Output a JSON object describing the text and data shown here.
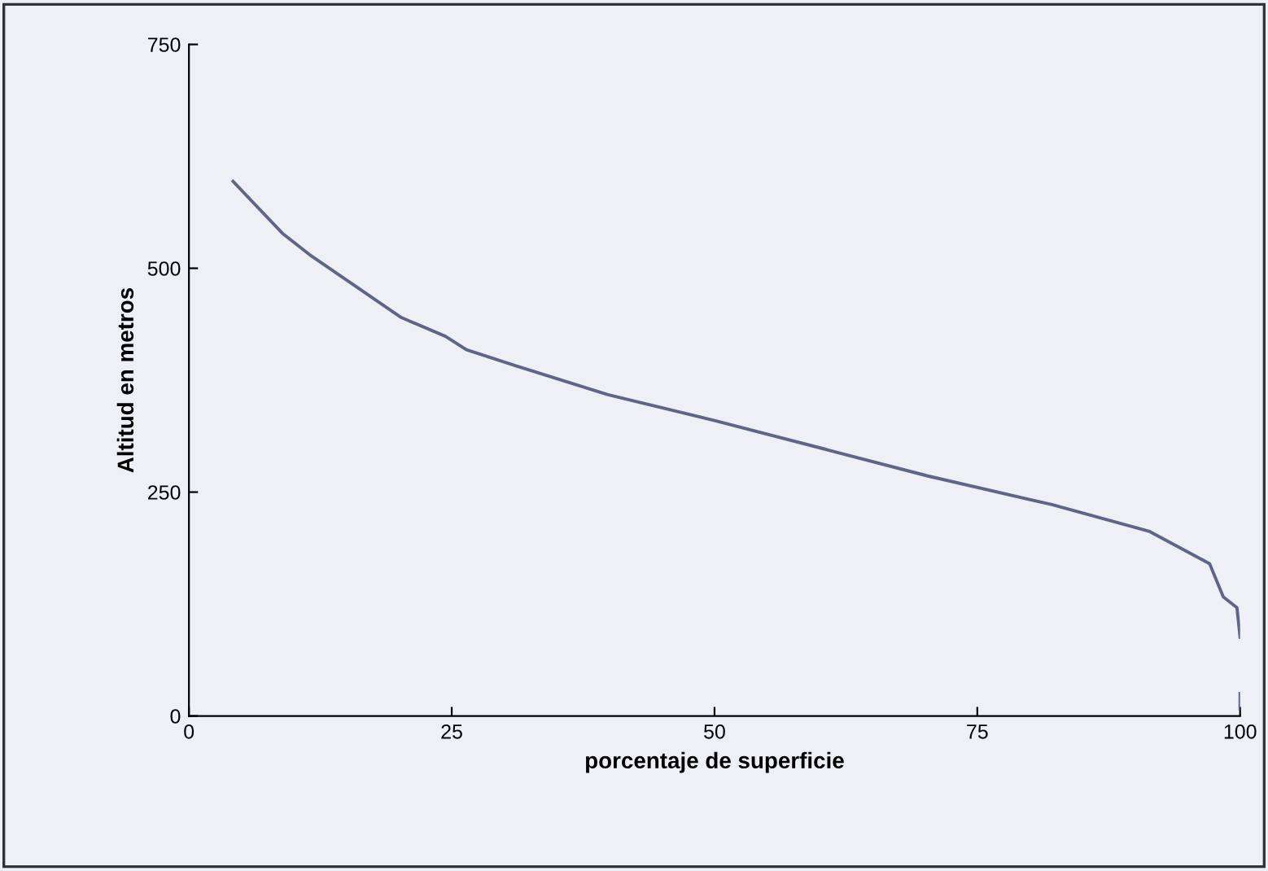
{
  "chart_data": {
    "type": "line",
    "xlabel": "porcentaje de superficie",
    "ylabel": "Altitud en metros",
    "series": [
      {
        "color": "#5f6585",
        "x": [
          4.2,
          8.9,
          11.5,
          15.6,
          20.2,
          24.4,
          26.4,
          31.1,
          39.8,
          50,
          60.5,
          70.3,
          82.1,
          91.4,
          97.1,
          98.4,
          99.7,
          100
        ],
        "values": [
          597,
          539,
          515,
          482,
          445,
          424,
          409,
          391,
          359,
          330,
          298,
          268,
          236,
          206,
          170,
          133,
          121,
          88
        ]
      },
      {
        "color": "#5f6585",
        "x": [
          100,
          100
        ],
        "values": [
          25,
          8
        ]
      }
    ],
    "xlim": [
      0,
      100
    ],
    "ylim": [
      0,
      750
    ],
    "xticks": [
      0,
      25,
      50,
      75,
      100
    ],
    "yticks": [
      0,
      250,
      500,
      750
    ],
    "grid": false,
    "legend": false,
    "marker": "none",
    "line_style": "solid"
  }
}
